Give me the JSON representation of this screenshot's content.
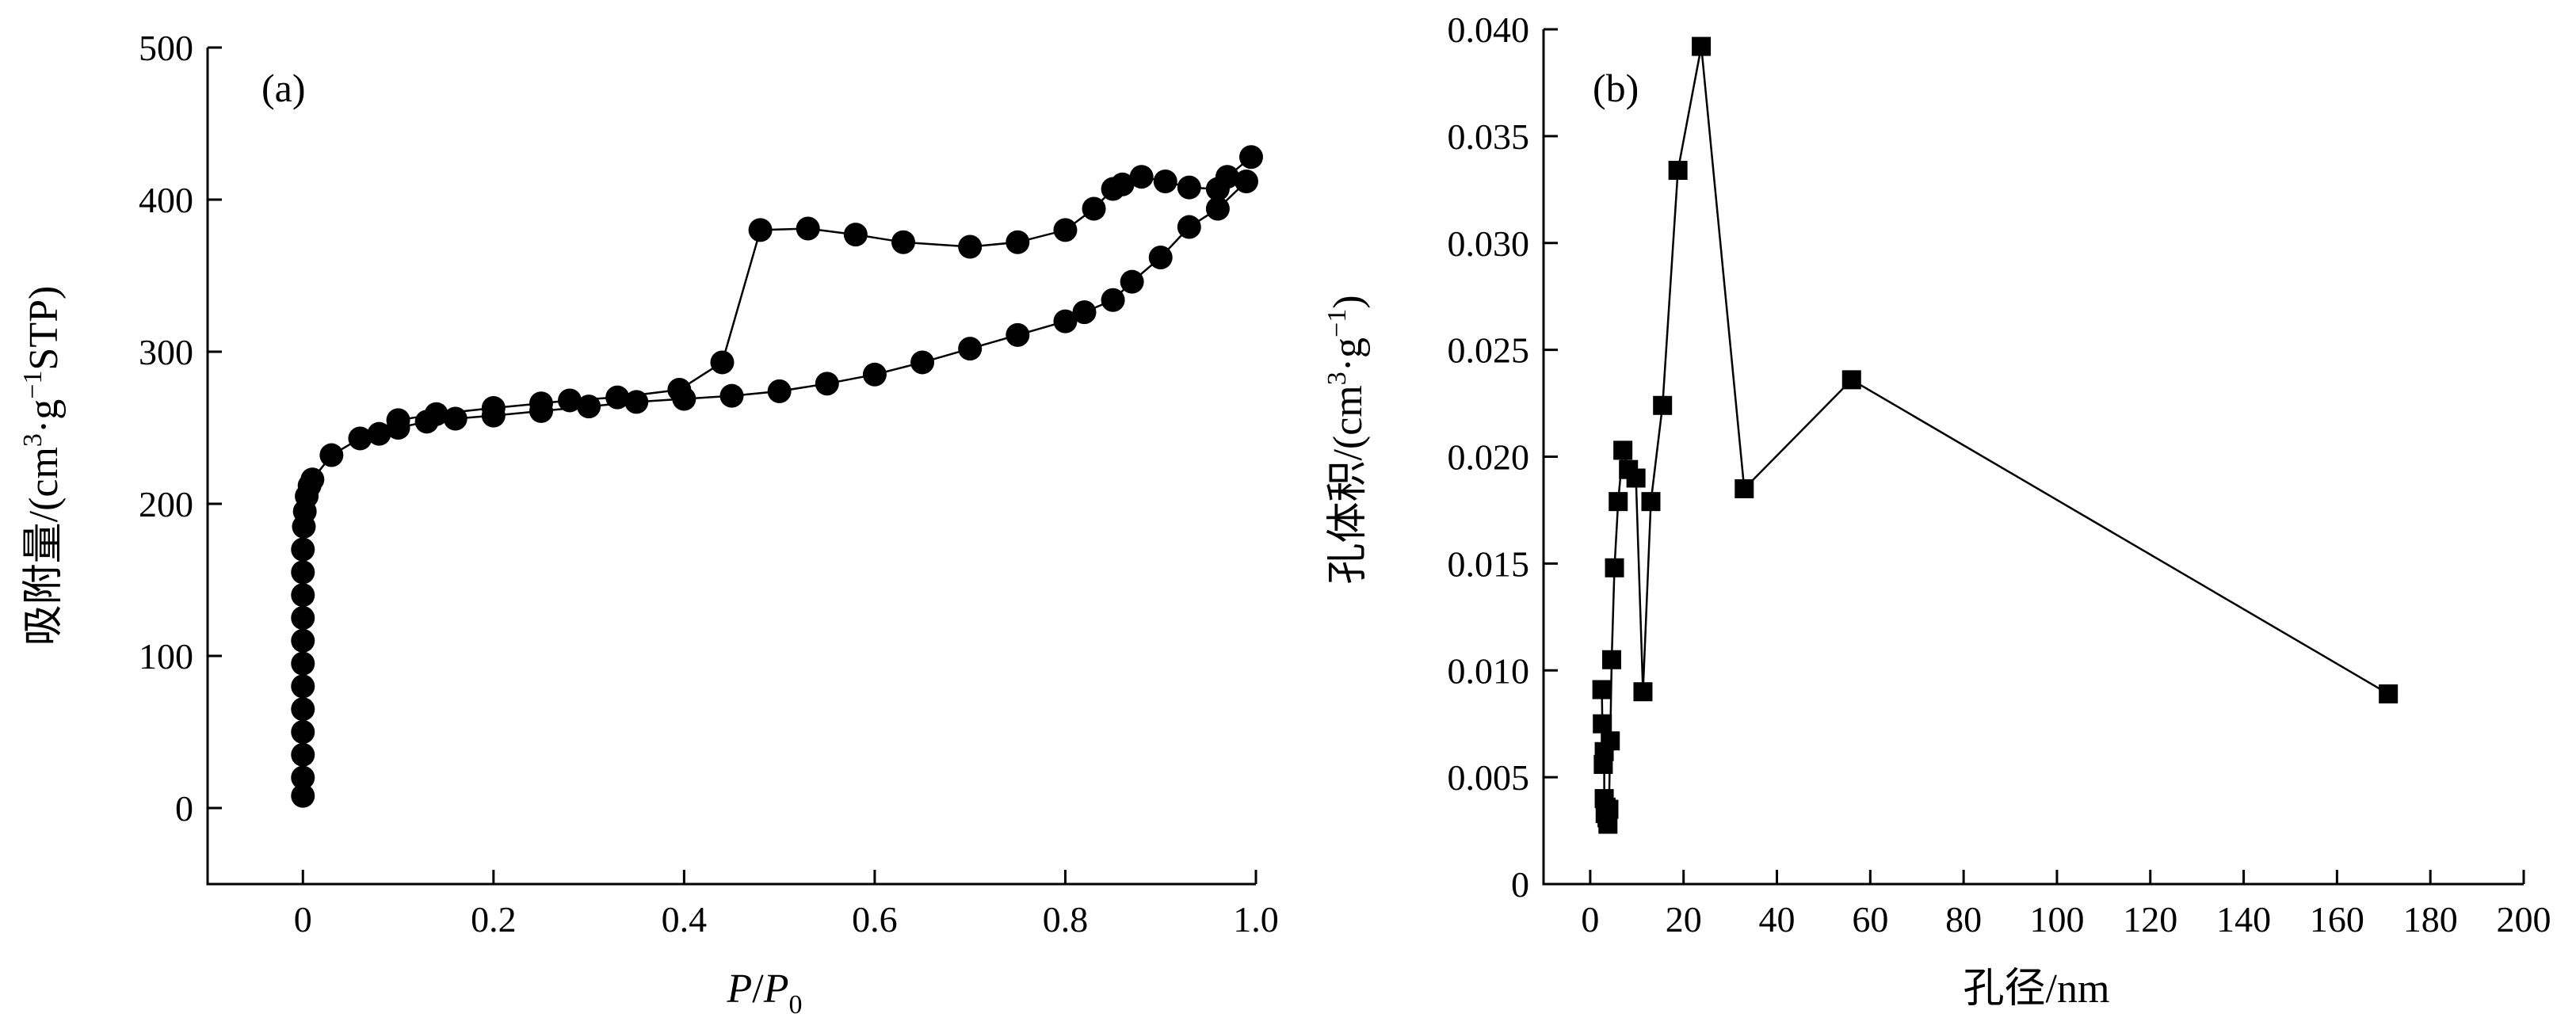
{
  "chart_data": [
    {
      "type": "line",
      "panel_label": "(a)",
      "xlabel": "P/P0",
      "xlabel_parts": {
        "main": "P",
        "slash": "/",
        "sub_main": "P",
        "sub": "0"
      },
      "ylabel_parts": {
        "pre": "吸附量/(cm",
        "sup1": "3",
        "mid": "·g",
        "sup2": "−1",
        "post": "STP)"
      },
      "xlim": [
        -0.1,
        1.0
      ],
      "ylim": [
        -50,
        500
      ],
      "xticks": [
        0,
        0.2,
        0.4,
        0.6,
        0.8,
        1.0
      ],
      "xtick_labels": [
        "0",
        "0.2",
        "0.4",
        "0.6",
        "0.8",
        "1.0"
      ],
      "yticks": [
        0,
        100,
        200,
        300,
        400,
        500
      ],
      "ytick_labels": [
        "0",
        "100",
        "200",
        "300",
        "400",
        "500"
      ],
      "marker": "circle",
      "grid": false,
      "series": [
        {
          "points": [
            [
              0.0,
              8
            ],
            [
              0.0,
              20
            ],
            [
              0.0,
              35
            ],
            [
              0.0,
              50
            ],
            [
              0.0,
              65
            ],
            [
              0.0,
              80
            ],
            [
              0.0,
              95
            ],
            [
              0.0,
              110
            ],
            [
              0.0,
              125
            ],
            [
              0.0,
              140
            ],
            [
              0.0,
              155
            ],
            [
              0.0,
              170
            ],
            [
              0.001,
              185
            ],
            [
              0.002,
              195
            ],
            [
              0.004,
              205
            ],
            [
              0.007,
              212
            ],
            [
              0.01,
              216
            ],
            [
              0.03,
              232
            ],
            [
              0.06,
              243
            ],
            [
              0.08,
              246
            ],
            [
              0.1,
              250
            ],
            [
              0.13,
              254
            ],
            [
              0.16,
              256
            ],
            [
              0.2,
              258
            ],
            [
              0.25,
              261
            ],
            [
              0.3,
              264
            ],
            [
              0.35,
              267
            ],
            [
              0.4,
              269
            ],
            [
              0.45,
              271
            ],
            [
              0.5,
              274
            ],
            [
              0.55,
              279
            ],
            [
              0.6,
              285
            ],
            [
              0.65,
              293
            ],
            [
              0.7,
              302
            ],
            [
              0.75,
              311
            ],
            [
              0.8,
              320
            ],
            [
              0.82,
              326
            ],
            [
              0.85,
              334
            ],
            [
              0.87,
              346
            ],
            [
              0.9,
              362
            ],
            [
              0.93,
              382
            ],
            [
              0.96,
              394
            ],
            [
              0.99,
              412
            ]
          ]
        },
        {
          "points": [
            [
              0.995,
              428
            ],
            [
              0.97,
              415
            ],
            [
              0.96,
              407
            ],
            [
              0.93,
              408
            ],
            [
              0.905,
              412
            ],
            [
              0.88,
              415
            ],
            [
              0.86,
              410
            ],
            [
              0.85,
              407
            ],
            [
              0.83,
              394
            ],
            [
              0.8,
              380
            ],
            [
              0.75,
              372
            ],
            [
              0.7,
              369
            ],
            [
              0.63,
              372
            ],
            [
              0.58,
              377
            ],
            [
              0.53,
              381
            ],
            [
              0.48,
              380
            ],
            [
              0.44,
              293
            ],
            [
              0.395,
              275
            ],
            [
              0.33,
              270
            ],
            [
              0.28,
              268
            ],
            [
              0.25,
              266
            ],
            [
              0.2,
              263
            ],
            [
              0.14,
              259
            ],
            [
              0.1,
              255
            ]
          ]
        }
      ]
    },
    {
      "type": "line",
      "panel_label": "(b)",
      "xlabel": "孔径/nm",
      "ylabel_parts": {
        "pre": "孔体积/(cm",
        "sup1": "3",
        "mid": "·g",
        "sup2": "−1",
        "post": ")"
      },
      "xlim": [
        -10,
        200
      ],
      "ylim": [
        0,
        0.04
      ],
      "xticks": [
        0,
        20,
        40,
        60,
        80,
        100,
        120,
        140,
        160,
        180,
        200
      ],
      "xtick_labels": [
        "0",
        "20",
        "40",
        "60",
        "80",
        "100",
        "120",
        "140",
        "160",
        "180",
        "200"
      ],
      "yticks": [
        0,
        0.005,
        0.01,
        0.015,
        0.02,
        0.025,
        0.03,
        0.035,
        0.04
      ],
      "ytick_labels": [
        "0",
        "0.005",
        "0.010",
        "0.015",
        "0.020",
        "0.025",
        "0.030",
        "0.035",
        "0.040"
      ],
      "marker": "square",
      "grid": false,
      "series": [
        {
          "points": [
            [
              2.5,
              0.0091
            ],
            [
              2.6,
              0.0075
            ],
            [
              2.8,
              0.0056
            ],
            [
              3.0,
              0.0062
            ],
            [
              3.0,
              0.004
            ],
            [
              3.2,
              0.0033
            ],
            [
              3.4,
              0.0036
            ],
            [
              3.6,
              0.0031
            ],
            [
              3.8,
              0.0028
            ],
            [
              4.0,
              0.0035
            ],
            [
              4.3,
              0.0067
            ],
            [
              4.6,
              0.0105
            ],
            [
              5.2,
              0.0148
            ],
            [
              6.0,
              0.0179
            ],
            [
              7.0,
              0.0203
            ],
            [
              8.2,
              0.0194
            ],
            [
              9.8,
              0.019
            ],
            [
              11.3,
              0.009
            ],
            [
              13.0,
              0.0179
            ],
            [
              15.5,
              0.0224
            ],
            [
              18.8,
              0.0334
            ],
            [
              23.8,
              0.0392
            ],
            [
              33.0,
              0.0185
            ],
            [
              56.0,
              0.0236
            ],
            [
              171.0,
              0.0089
            ]
          ]
        }
      ]
    }
  ]
}
